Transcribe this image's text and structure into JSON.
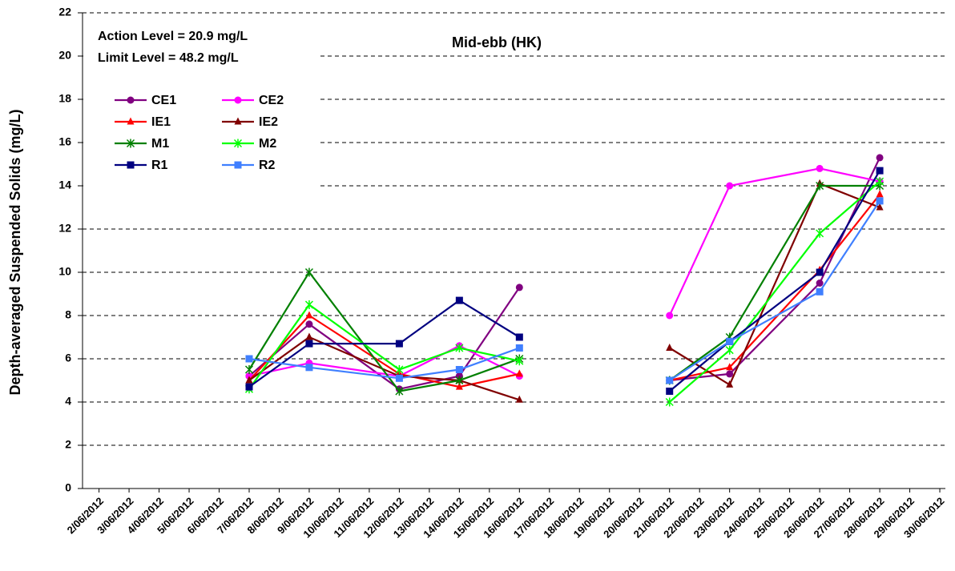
{
  "chart_data": {
    "type": "line",
    "title": "Mid-ebb (HK)",
    "annotations": [
      "Action Level = 20.9 mg/L",
      "Limit Level = 48.2 mg/L"
    ],
    "y_label": "Depth-averaged Suspended Solids (mg/L)",
    "xticks": [
      "2/06/2012",
      "3/06/2012",
      "4/06/2012",
      "5/06/2012",
      "6/06/2012",
      "7/06/2012",
      "8/06/2012",
      "9/06/2012",
      "10/06/2012",
      "11/06/2012",
      "12/06/2012",
      "13/06/2012",
      "14/06/2012",
      "15/06/2012",
      "16/06/2012",
      "17/06/2012",
      "18/06/2012",
      "19/06/2012",
      "20/06/2012",
      "21/06/2012",
      "22/06/2012",
      "23/06/2012",
      "24/06/2012",
      "25/06/2012",
      "26/06/2012",
      "27/06/2012",
      "28/06/2012",
      "29/06/2012",
      "30/06/2012"
    ],
    "x": [
      "7/06/2012",
      "9/06/2012",
      "12/06/2012",
      "14/06/2012",
      "16/06/2012",
      "19/06/2012",
      "21/06/2012",
      "23/06/2012",
      "26/06/2012",
      "28/06/2012"
    ],
    "series": [
      {
        "name": "CE1",
        "color": "#800080",
        "marker": "circle",
        "values": [
          5.2,
          7.6,
          4.6,
          5.2,
          9.3,
          null,
          5.0,
          5.3,
          9.5,
          15.3
        ]
      },
      {
        "name": "CE2",
        "color": "#ff00ff",
        "marker": "circle",
        "values": [
          5.2,
          5.8,
          5.2,
          6.6,
          5.2,
          null,
          8.0,
          14.0,
          14.8,
          14.2
        ]
      },
      {
        "name": "IE1",
        "color": "#ff0000",
        "marker": "triangle",
        "values": [
          5.0,
          8.0,
          5.3,
          4.7,
          5.3,
          null,
          5.0,
          5.6,
          10.1,
          13.6
        ]
      },
      {
        "name": "IE2",
        "color": "#800000",
        "marker": "triangle",
        "values": [
          5.0,
          7.0,
          5.2,
          5.0,
          4.1,
          null,
          6.5,
          4.8,
          14.1,
          13.0
        ]
      },
      {
        "name": "M1",
        "color": "#008000",
        "marker": "asterisk",
        "values": [
          5.5,
          10.0,
          4.5,
          5.0,
          6.0,
          null,
          5.0,
          7.0,
          14.0,
          14.0
        ]
      },
      {
        "name": "M2",
        "color": "#00ff00",
        "marker": "asterisk",
        "values": [
          4.6,
          8.5,
          5.5,
          6.5,
          5.9,
          null,
          4.0,
          6.4,
          11.8,
          14.2
        ]
      },
      {
        "name": "R1",
        "color": "#000080",
        "marker": "square",
        "values": [
          4.7,
          6.7,
          6.7,
          8.7,
          7.0,
          null,
          4.5,
          6.8,
          10.0,
          14.7
        ]
      },
      {
        "name": "R2",
        "color": "#3f7fff",
        "marker": "square",
        "values": [
          6.0,
          5.6,
          5.1,
          5.5,
          6.5,
          null,
          5.0,
          6.8,
          9.1,
          13.3
        ]
      }
    ],
    "ylim": [
      0,
      22
    ],
    "yticks": [
      0,
      2,
      4,
      6,
      8,
      10,
      12,
      14,
      16,
      18,
      20,
      22
    ],
    "grid": true
  }
}
